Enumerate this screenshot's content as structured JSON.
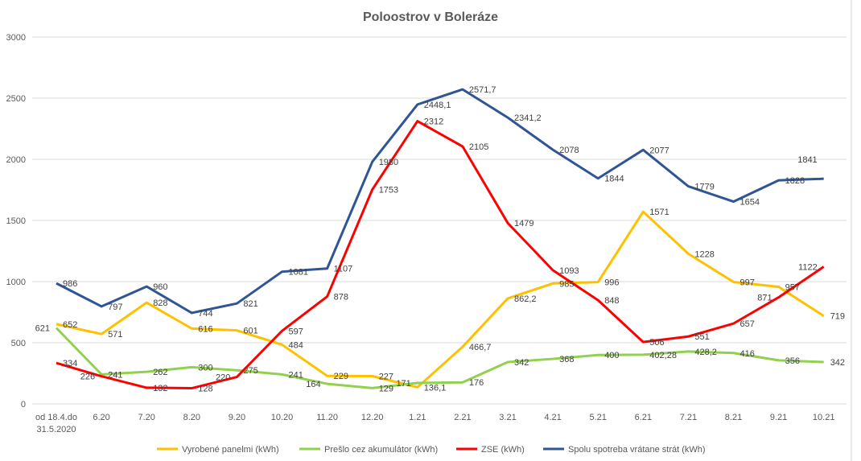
{
  "chart_data": {
    "type": "line",
    "title": "Poloostrov v Boleráze",
    "categories": [
      "od 18.4.do 31.5.2020",
      "6.20",
      "7.20",
      "8.20",
      "9.20",
      "10.20",
      "11.20",
      "12.20",
      "1.21",
      "2.21",
      "3.21",
      "4.21",
      "5.21",
      "6.21",
      "7.21",
      "8.21",
      "9.21",
      "10.21"
    ],
    "ylim": [
      0,
      3000
    ],
    "yticks": [
      0,
      500,
      1000,
      1500,
      2000,
      2500,
      3000
    ],
    "grid": true,
    "legend": "bottom",
    "series": [
      {
        "name": "Vyrobené panelmi (kWh)",
        "color": "#FFC000",
        "values": [
          652,
          571,
          828,
          616,
          601,
          484,
          229,
          227,
          136.1,
          466.7,
          862.2,
          985,
          996,
          1571,
          1228,
          997,
          957,
          719
        ],
        "labels": [
          "652",
          "571",
          "828",
          "616",
          "601",
          "484",
          "229",
          "227",
          "136,1",
          "466,7",
          "862,2",
          "985",
          "996",
          "1571",
          "1228",
          "997",
          "957",
          "719"
        ]
      },
      {
        "name": "Prešlo cez akumulátor (kWh)",
        "color": "#92D050",
        "values": [
          621,
          241,
          262,
          300,
          275,
          241,
          164,
          129,
          171,
          176,
          342,
          368,
          400,
          402.28,
          428.2,
          416,
          356,
          342
        ],
        "labels": [
          "621",
          "241",
          "262",
          "300",
          "275",
          "241",
          "164",
          "129",
          "171",
          "176",
          "342",
          "368",
          "400",
          "402,28",
          "428,2",
          "416",
          "356",
          "342"
        ]
      },
      {
        "name": "ZSE (kWh)",
        "color": "#FF0000",
        "values": [
          334,
          226,
          132,
          128,
          220,
          597,
          878,
          1753,
          2312,
          2105,
          1479,
          1093,
          848,
          506,
          551,
          657,
          871,
          1122
        ],
        "labels": [
          "334",
          "226",
          "132",
          "128",
          "220",
          "597",
          "878",
          "1753",
          "2312",
          "2105",
          "1479",
          "1093",
          "848",
          "506",
          "551",
          "657",
          "871",
          "1122"
        ]
      },
      {
        "name": "Spolu spotreba vrátane strát (kWh)",
        "color": "#2F5597",
        "values": [
          986,
          797,
          960,
          744,
          821,
          1081,
          1107,
          1980,
          2448.1,
          2571.7,
          2341.2,
          2078,
          1844,
          2077,
          1779,
          1654,
          1828,
          1841
        ],
        "labels": [
          "986",
          "797",
          "960",
          "744",
          "821",
          "1081",
          "1107",
          "1980",
          "2448,1",
          "2571,7",
          "2341,2",
          "2078",
          "1844",
          "2077",
          "1779",
          "1654",
          "1828",
          "1841"
        ]
      }
    ]
  }
}
